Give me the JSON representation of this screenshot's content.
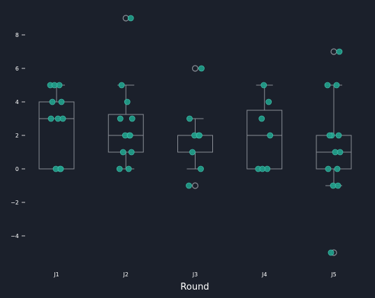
{
  "chart_data": {
    "type": "box",
    "xlabel": "Round",
    "ylabel": "",
    "title": "",
    "ylim": [
      -5.6,
      9.6
    ],
    "yticks": [
      -4,
      -2,
      0,
      2,
      4,
      6,
      8
    ],
    "yticklabels": [
      "−4",
      "−2",
      "0",
      "2",
      "4",
      "6",
      "8"
    ],
    "categories": [
      "J1",
      "J2",
      "J3",
      "J4",
      "J5"
    ],
    "boxes": [
      {
        "q1": 0,
        "median": 3,
        "q3": 4,
        "whisker_low": 0,
        "whisker_high": 5,
        "outliers": []
      },
      {
        "q1": 1,
        "median": 2,
        "q3": 3.25,
        "whisker_low": 0,
        "whisker_high": 5,
        "outliers": [
          9
        ]
      },
      {
        "q1": 1,
        "median": 2,
        "q3": 2,
        "whisker_low": 0,
        "whisker_high": 3,
        "outliers": [
          6,
          -1
        ]
      },
      {
        "q1": 0,
        "median": 2,
        "q3": 3.5,
        "whisker_low": 0,
        "whisker_high": 5,
        "outliers": []
      },
      {
        "q1": 0,
        "median": 1,
        "q3": 2,
        "whisker_low": -1,
        "whisker_high": 5,
        "outliers": [
          7,
          -5
        ]
      }
    ],
    "points": [
      [
        5,
        5,
        5,
        4,
        4,
        3,
        3,
        3,
        0,
        0,
        0
      ],
      [
        9,
        5,
        4,
        3,
        3,
        2,
        2,
        2,
        1,
        1,
        0,
        0
      ],
      [
        6,
        3,
        2,
        2,
        2,
        1,
        0,
        -1
      ],
      [
        5,
        4,
        3,
        2,
        0,
        0,
        0
      ],
      [
        7,
        5,
        5,
        2,
        2,
        2,
        1,
        1,
        0,
        0,
        -1,
        -1,
        -5
      ]
    ],
    "grid": false,
    "colors": {
      "box": "#8a8e96",
      "point": "#1f9e89",
      "point_edge": "#3fb8a6",
      "outlier": "#8a8e96",
      "background": "#1b202b",
      "text": "#ffffff"
    }
  }
}
